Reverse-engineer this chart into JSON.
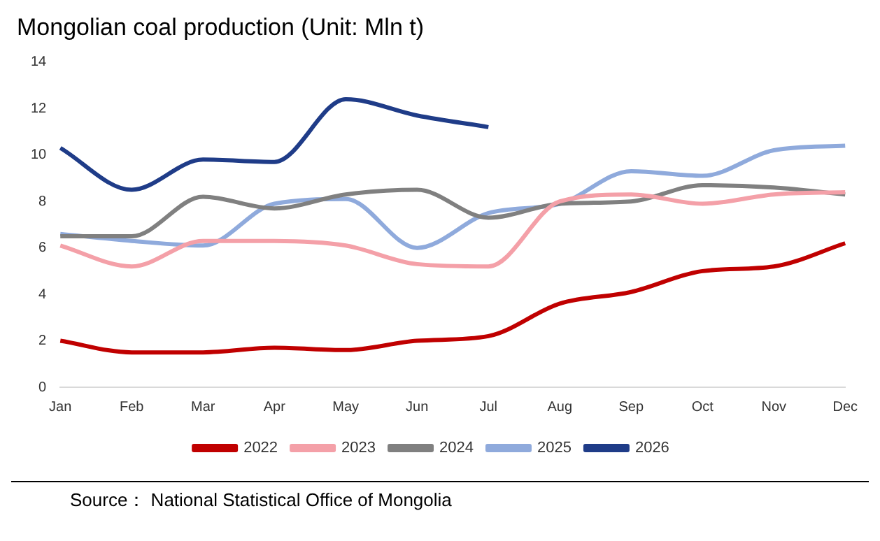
{
  "chart_data": {
    "type": "line",
    "title": "Mongolian coal production (Unit: Mln t)",
    "categories": [
      "Jan",
      "Feb",
      "Mar",
      "Apr",
      "May",
      "Jun",
      "Jul",
      "Aug",
      "Sep",
      "Oct",
      "Nov",
      "Dec"
    ],
    "series": [
      {
        "name": "2022",
        "color": "#c00000",
        "values": [
          2.0,
          1.5,
          1.5,
          1.7,
          1.6,
          2.0,
          2.2,
          3.6,
          4.1,
          5.0,
          5.2,
          6.2
        ]
      },
      {
        "name": "2023",
        "color": "#f4a0a8",
        "values": [
          6.1,
          5.2,
          6.3,
          6.3,
          6.1,
          5.3,
          5.2,
          8.0,
          8.3,
          7.9,
          8.3,
          8.4
        ]
      },
      {
        "name": "2024",
        "color": "#808080",
        "values": [
          6.5,
          6.5,
          8.2,
          7.7,
          8.3,
          8.5,
          7.3,
          7.9,
          8.0,
          8.7,
          8.6,
          8.3
        ]
      },
      {
        "name": "2025",
        "color": "#8faadc",
        "values": [
          6.6,
          6.3,
          6.1,
          7.9,
          8.1,
          6.0,
          7.5,
          7.9,
          9.3,
          9.1,
          10.2,
          10.4
        ]
      },
      {
        "name": "2026",
        "color": "#1f3c88",
        "values": [
          10.3,
          8.5,
          9.8,
          9.7,
          12.4,
          11.7,
          11.2,
          null,
          null,
          null,
          null,
          null
        ]
      }
    ],
    "ylim": [
      0,
      14
    ],
    "yticks": [
      0,
      2,
      4,
      6,
      8,
      10,
      12,
      14
    ],
    "grid": false,
    "legend": "bottom",
    "marker": "none",
    "line_style": "solid",
    "annotations": [
      "Source： National Statistical Office of Mongolia"
    ]
  }
}
